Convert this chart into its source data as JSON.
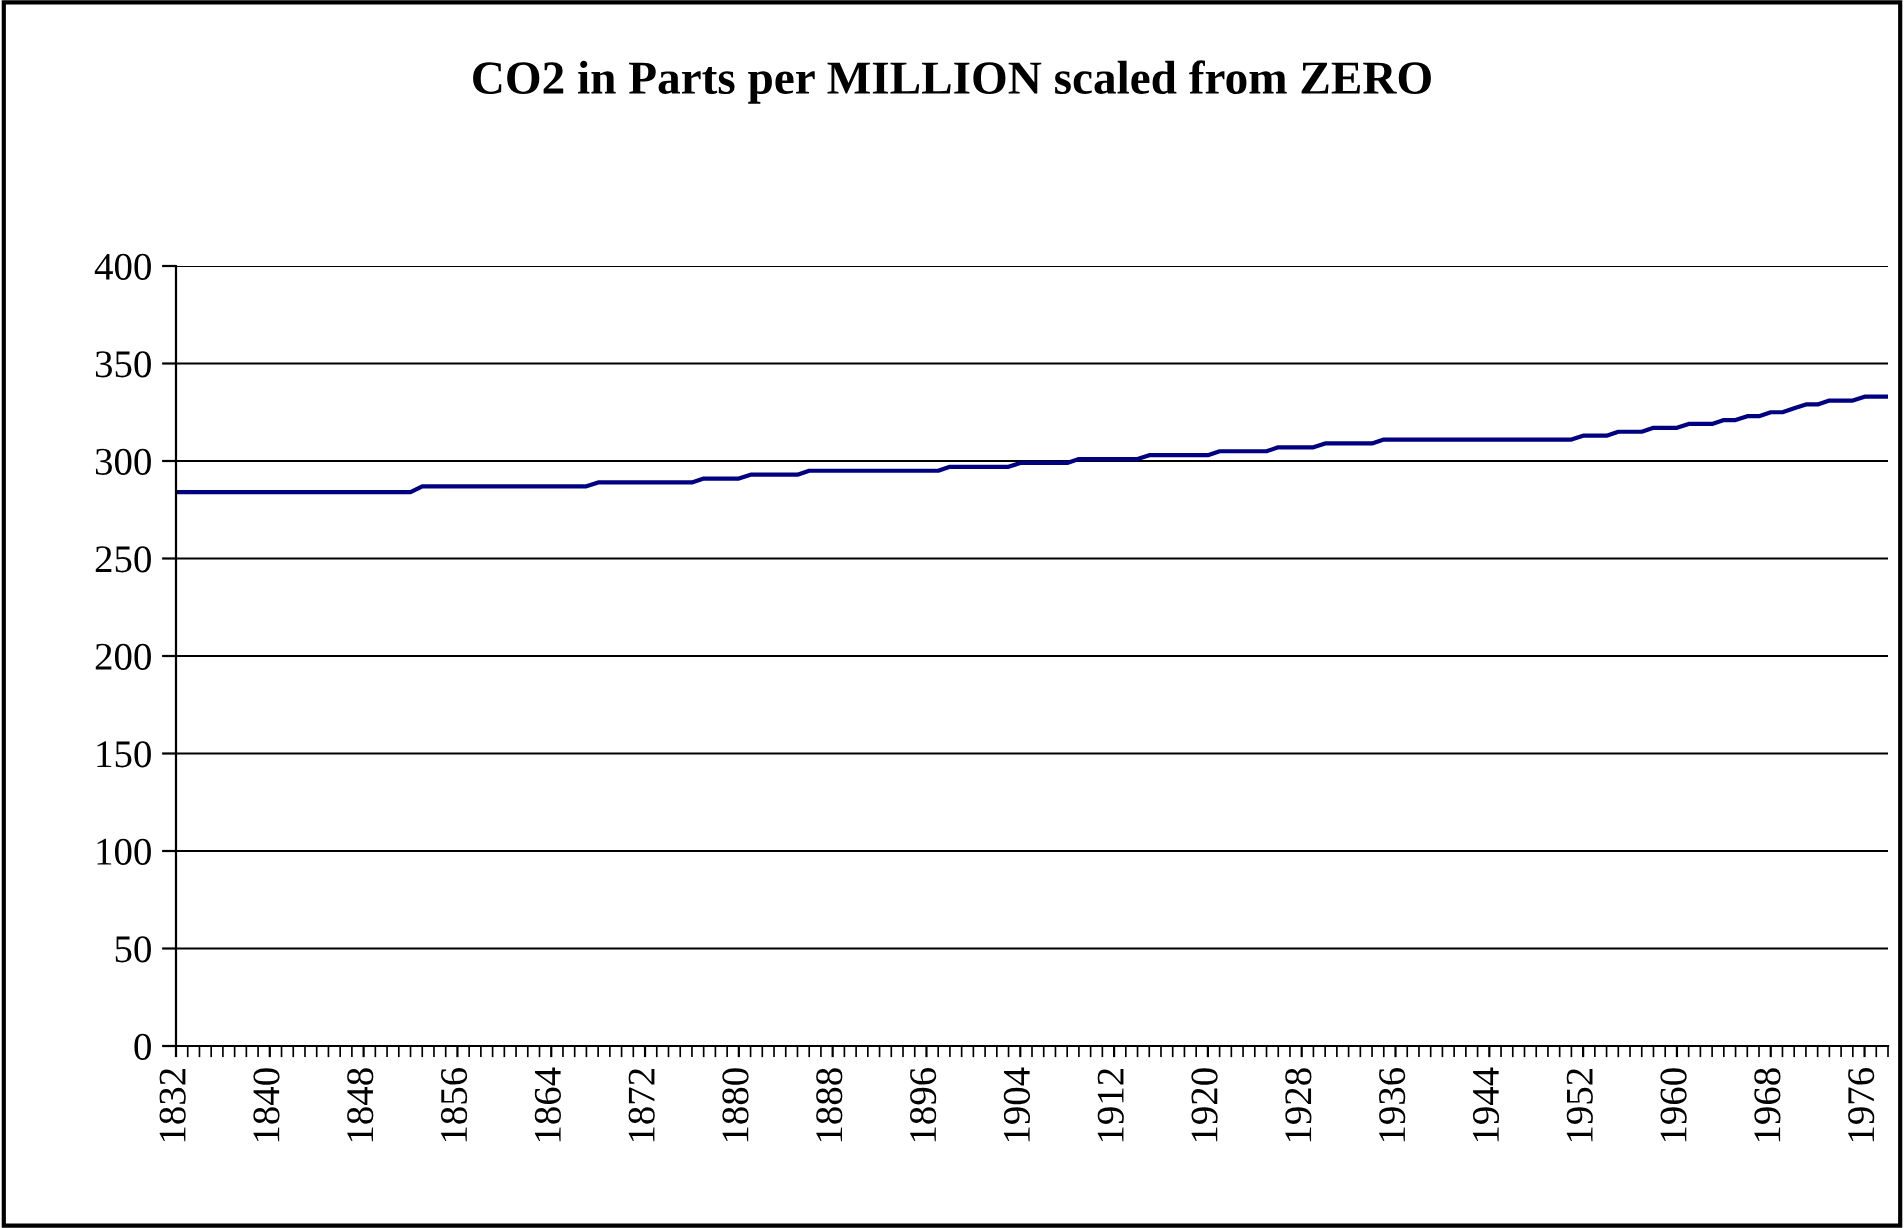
{
  "chart_data": {
    "type": "line",
    "title": "CO2 in Parts per MILLION scaled from ZERO",
    "categories": [
      "1832",
      null,
      null,
      null,
      null,
      null,
      null,
      null,
      "1840",
      null,
      null,
      null,
      null,
      null,
      null,
      null,
      "1848",
      null,
      null,
      null,
      null,
      null,
      null,
      null,
      "1856",
      null,
      null,
      null,
      null,
      null,
      null,
      null,
      "1864",
      null,
      null,
      null,
      null,
      null,
      null,
      null,
      "1872",
      null,
      null,
      null,
      null,
      null,
      null,
      null,
      "1880",
      null,
      null,
      null,
      null,
      null,
      null,
      null,
      "1888",
      null,
      null,
      null,
      null,
      null,
      null,
      null,
      "1896",
      null,
      null,
      null,
      null,
      null,
      null,
      null,
      "1904",
      null,
      null,
      null,
      null,
      null,
      null,
      null,
      "1912",
      null,
      null,
      null,
      null,
      null,
      null,
      null,
      "1920",
      null,
      null,
      null,
      null,
      null,
      null,
      null,
      "1928",
      null,
      null,
      null,
      null,
      null,
      null,
      null,
      "1936",
      null,
      null,
      null,
      null,
      null,
      null,
      null,
      "1944",
      null,
      null,
      null,
      null,
      null,
      null,
      null,
      "1952",
      null,
      null,
      null,
      null,
      null,
      null,
      null,
      "1960",
      null,
      null,
      null,
      null,
      null,
      null,
      null,
      "1968",
      null,
      null,
      null,
      null,
      null,
      null,
      null,
      "1976",
      null,
      null
    ],
    "series": [
      {
        "color": "#000080",
        "values": [
          284,
          284,
          284,
          284,
          284,
          284,
          284,
          284,
          284,
          284,
          284,
          284,
          284,
          284,
          284,
          284,
          284,
          284,
          284,
          284,
          284,
          287,
          287,
          287,
          287,
          287,
          287,
          287,
          287,
          287,
          287,
          287,
          287,
          287,
          287,
          287,
          289,
          289,
          289,
          289,
          289,
          289,
          289,
          289,
          289,
          291,
          291,
          291,
          291,
          293,
          293,
          293,
          293,
          293,
          295,
          295,
          295,
          295,
          295,
          295,
          295,
          295,
          295,
          295,
          295,
          295,
          297,
          297,
          297,
          297,
          297,
          297,
          299,
          299,
          299,
          299,
          299,
          301,
          301,
          301,
          301,
          301,
          301,
          303,
          303,
          303,
          303,
          303,
          303,
          305,
          305,
          305,
          305,
          305,
          307,
          307,
          307,
          307,
          309,
          309,
          309,
          309,
          309,
          311,
          311,
          311,
          311,
          311,
          311,
          311,
          311,
          311,
          311,
          311,
          311,
          311,
          311,
          311,
          311,
          311,
          313,
          313,
          313,
          315,
          315,
          315,
          317,
          317,
          317,
          319,
          319,
          319,
          321,
          321,
          323,
          323,
          325,
          325,
          327,
          329,
          329,
          331,
          331,
          331,
          333,
          333,
          333
        ]
      }
    ],
    "ylim": [
      0,
      400
    ],
    "yticks": [
      0,
      50,
      100,
      150,
      200,
      250,
      300,
      350,
      400
    ],
    "grid": "y",
    "marker": "none",
    "line_style": "solid"
  }
}
